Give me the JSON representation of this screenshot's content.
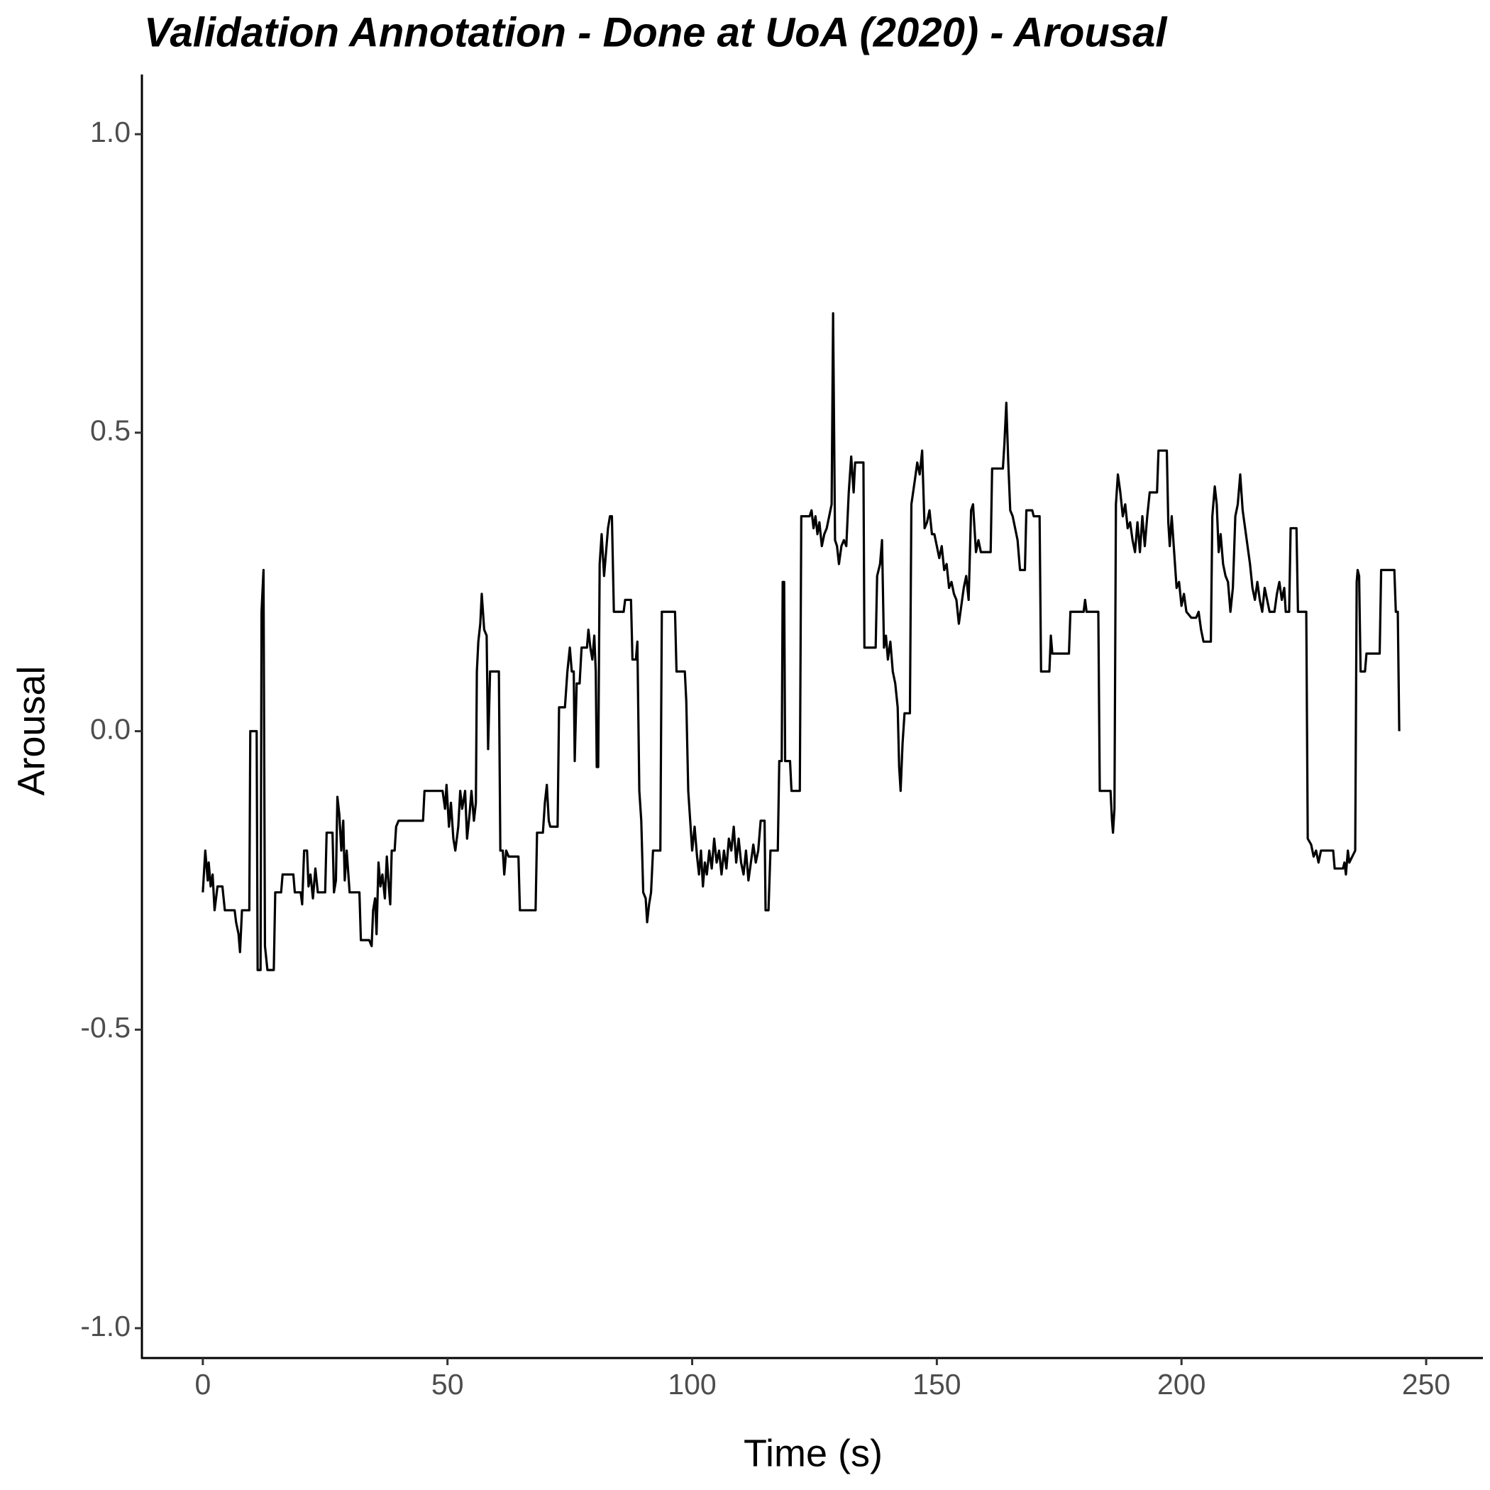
{
  "chart_data": {
    "type": "line",
    "title": "Validation Annotation - Done at UoA (2020) - Arousal",
    "x_label": "Time (s)",
    "y_label": "Arousal",
    "color": "#000000",
    "xlim": [
      -12.45,
      261.45
    ],
    "ylim": [
      -1.05,
      1.1
    ],
    "xticks": [
      0,
      50,
      100,
      150,
      200,
      250
    ],
    "yticks": [
      {
        "value": -1,
        "label": "-1.0"
      },
      {
        "value": -0.5,
        "label": "-0.5"
      },
      {
        "value": 0,
        "label": "0.0"
      },
      {
        "value": 0.5,
        "label": "0.5"
      },
      {
        "value": 1,
        "label": "1.0"
      }
    ],
    "x": [
      0,
      0.5,
      1,
      1.2,
      1.6,
      2,
      2.4,
      3,
      4,
      4.5,
      6,
      6.5,
      6.8,
      7.3,
      7.6,
      8,
      9,
      9.5,
      9.7,
      11,
      11.2,
      11.8,
      12,
      12.4,
      12.7,
      13.2,
      14.5,
      14.8,
      16,
      16.3,
      18.5,
      18.8,
      20,
      20.3,
      20.7,
      21.3,
      21.6,
      22,
      22.5,
      23,
      23.5,
      25,
      25.3,
      26.5,
      26.8,
      27.2,
      27.5,
      27.9,
      28.3,
      28.7,
      29,
      29.4,
      30,
      32,
      32.3,
      34,
      34.5,
      34.8,
      35.2,
      35.5,
      35.9,
      36.3,
      36.7,
      37.2,
      37.6,
      38,
      38.3,
      38.6,
      39.2,
      39.5,
      40,
      45,
      45.3,
      49,
      49.5,
      49.8,
      50.3,
      50.7,
      51.2,
      51.6,
      52.2,
      52.6,
      53,
      53.6,
      54,
      54.5,
      54.9,
      55.4,
      55.8,
      56,
      56.3,
      56.7,
      57,
      57.5,
      58,
      58.3,
      58.7,
      60.5,
      60.8,
      61.3,
      61.6,
      62,
      62.5,
      64.5,
      64.8,
      68,
      68.3,
      69.5,
      69.9,
      70.3,
      70.7,
      71,
      72.5,
      72.8,
      74,
      74.5,
      75,
      75.4,
      75.8,
      76,
      76.4,
      77,
      77.4,
      78.5,
      78.8,
      79.2,
      79.6,
      80,
      80.3,
      80.5,
      80.8,
      81.1,
      81.5,
      82,
      82.4,
      82.8,
      83.2,
      83.6,
      84,
      86,
      86.3,
      87.5,
      87.8,
      88.5,
      88.8,
      89.2,
      89.6,
      90,
      90.5,
      90.8,
      91.2,
      91.6,
      92,
      93.5,
      93.8,
      96.5,
      96.8,
      98.5,
      98.8,
      99.2,
      99.6,
      100,
      100.5,
      101,
      101.4,
      101.8,
      102.2,
      102.6,
      103,
      103.5,
      104,
      104.5,
      105,
      105.5,
      106,
      106.5,
      107,
      107.5,
      108,
      108.5,
      109,
      109.5,
      110,
      110.5,
      111,
      111.5,
      112,
      112.5,
      113,
      113.5,
      114,
      114.8,
      115,
      115.6,
      116,
      117.5,
      117.8,
      118.3,
      118.5,
      118.8,
      119,
      120,
      120.3,
      122,
      122.3,
      124,
      124.4,
      124.8,
      125.2,
      125.6,
      126,
      126.5,
      127,
      127.5,
      128,
      128.5,
      128.8,
      129.2,
      129.6,
      130,
      130.5,
      131,
      131.5,
      132,
      132.5,
      133,
      133.3,
      135,
      135.2,
      137.5,
      137.8,
      138.4,
      138.8,
      139.2,
      139.6,
      140,
      140.5,
      141,
      141.5,
      142,
      142.3,
      142.6,
      143,
      143.4,
      144.5,
      144.8,
      145.5,
      146,
      146.5,
      147,
      147.5,
      148,
      148.5,
      149,
      149.5,
      150,
      150.5,
      151,
      151.5,
      152,
      152.5,
      153,
      153.5,
      154,
      154.5,
      155,
      155.5,
      156,
      156.5,
      157,
      157.4,
      158,
      158.5,
      159,
      161,
      161.3,
      163.5,
      163.8,
      164.2,
      164.6,
      165,
      165.5,
      166,
      166.5,
      167,
      168,
      168.3,
      169.5,
      169.8,
      171,
      171.3,
      173,
      173.3,
      173.6,
      177,
      177.3,
      180,
      180.3,
      180.6,
      183,
      183.3,
      185.5,
      185.8,
      186,
      186.3,
      186.6,
      187,
      187.5,
      188,
      188.5,
      189,
      189.5,
      190,
      190.5,
      191,
      191.5,
      192,
      192.5,
      193,
      193.5,
      195,
      195.3,
      197,
      197.3,
      197.6,
      198,
      198.5,
      199,
      199.5,
      200,
      200.5,
      201,
      202,
      203,
      203.5,
      204,
      204.5,
      206,
      206.3,
      206.8,
      207.2,
      207.6,
      208,
      208.5,
      209,
      209.5,
      210,
      210.5,
      211,
      211.5,
      212,
      212.5,
      213,
      213.5,
      214,
      214.5,
      215,
      215.5,
      216,
      216.5,
      217,
      218,
      219,
      219.5,
      220,
      220.5,
      221,
      221.3,
      222,
      222.3,
      223.5,
      223.8,
      225.5,
      225.8,
      226.5,
      227,
      227.5,
      228,
      228.5,
      231,
      231.3,
      233,
      233.3,
      233.6,
      234,
      234.3,
      235.5,
      235.8,
      236,
      236.3,
      236.6,
      237.5,
      237.8,
      240.5,
      240.8,
      243.5,
      243.8,
      244.2,
      244.5
    ],
    "values": [
      -0.27,
      -0.2,
      -0.25,
      -0.22,
      -0.26,
      -0.24,
      -0.3,
      -0.26,
      -0.26,
      -0.3,
      -0.3,
      -0.3,
      -0.32,
      -0.34,
      -0.37,
      -0.3,
      -0.3,
      -0.3,
      0,
      0,
      -0.4,
      -0.4,
      0.2,
      0.27,
      -0.36,
      -0.4,
      -0.4,
      -0.27,
      -0.27,
      -0.24,
      -0.24,
      -0.27,
      -0.27,
      -0.29,
      -0.2,
      -0.2,
      -0.26,
      -0.24,
      -0.28,
      -0.23,
      -0.27,
      -0.27,
      -0.17,
      -0.17,
      -0.27,
      -0.25,
      -0.11,
      -0.14,
      -0.2,
      -0.15,
      -0.25,
      -0.2,
      -0.27,
      -0.27,
      -0.35,
      -0.35,
      -0.36,
      -0.3,
      -0.28,
      -0.34,
      -0.22,
      -0.26,
      -0.24,
      -0.28,
      -0.21,
      -0.26,
      -0.29,
      -0.2,
      -0.2,
      -0.16,
      -0.15,
      -0.15,
      -0.1,
      -0.1,
      -0.13,
      -0.09,
      -0.16,
      -0.12,
      -0.18,
      -0.2,
      -0.16,
      -0.1,
      -0.13,
      -0.1,
      -0.18,
      -0.14,
      -0.1,
      -0.15,
      -0.12,
      0.1,
      0.15,
      0.18,
      0.23,
      0.17,
      0.16,
      -0.03,
      0.1,
      0.1,
      -0.2,
      -0.2,
      -0.24,
      -0.2,
      -0.21,
      -0.21,
      -0.3,
      -0.3,
      -0.17,
      -0.17,
      -0.12,
      -0.09,
      -0.15,
      -0.16,
      -0.16,
      0.04,
      0.04,
      0.1,
      0.14,
      0.1,
      0.1,
      -0.05,
      0.08,
      0.08,
      0.14,
      0.14,
      0.17,
      0.14,
      0.12,
      0.16,
      0.1,
      -0.06,
      -0.06,
      0.28,
      0.33,
      0.26,
      0.3,
      0.34,
      0.36,
      0.36,
      0.2,
      0.2,
      0.22,
      0.22,
      0.12,
      0.12,
      0.15,
      -0.1,
      -0.15,
      -0.27,
      -0.28,
      -0.32,
      -0.29,
      -0.27,
      -0.2,
      -0.2,
      0.2,
      0.2,
      0.1,
      0.1,
      0.05,
      -0.1,
      -0.15,
      -0.2,
      -0.16,
      -0.21,
      -0.24,
      -0.2,
      -0.26,
      -0.22,
      -0.24,
      -0.2,
      -0.23,
      -0.18,
      -0.22,
      -0.2,
      -0.24,
      -0.2,
      -0.23,
      -0.18,
      -0.2,
      -0.16,
      -0.22,
      -0.18,
      -0.22,
      -0.24,
      -0.2,
      -0.25,
      -0.22,
      -0.19,
      -0.22,
      -0.2,
      -0.15,
      -0.15,
      -0.3,
      -0.3,
      -0.2,
      -0.2,
      -0.05,
      -0.05,
      0.25,
      0.25,
      -0.05,
      -0.05,
      -0.1,
      -0.1,
      0.36,
      0.36,
      0.37,
      0.34,
      0.36,
      0.33,
      0.35,
      0.31,
      0.33,
      0.34,
      0.36,
      0.38,
      0.7,
      0.32,
      0.31,
      0.28,
      0.31,
      0.32,
      0.31,
      0.4,
      0.46,
      0.4,
      0.45,
      0.45,
      0.14,
      0.14,
      0.26,
      0.28,
      0.32,
      0.14,
      0.16,
      0.12,
      0.15,
      0.1,
      0.08,
      0.04,
      -0.06,
      -0.1,
      -0.02,
      0.03,
      0.03,
      0.38,
      0.42,
      0.45,
      0.43,
      0.47,
      0.34,
      0.35,
      0.37,
      0.33,
      0.33,
      0.31,
      0.29,
      0.31,
      0.27,
      0.28,
      0.24,
      0.25,
      0.23,
      0.22,
      0.18,
      0.21,
      0.24,
      0.26,
      0.22,
      0.37,
      0.38,
      0.3,
      0.32,
      0.3,
      0.3,
      0.44,
      0.44,
      0.48,
      0.55,
      0.45,
      0.37,
      0.36,
      0.34,
      0.32,
      0.27,
      0.27,
      0.37,
      0.37,
      0.36,
      0.36,
      0.1,
      0.1,
      0.16,
      0.13,
      0.13,
      0.2,
      0.2,
      0.22,
      0.2,
      0.2,
      -0.1,
      -0.1,
      -0.15,
      -0.17,
      -0.13,
      0.38,
      0.43,
      0.4,
      0.36,
      0.38,
      0.34,
      0.35,
      0.32,
      0.3,
      0.35,
      0.3,
      0.36,
      0.31,
      0.36,
      0.4,
      0.4,
      0.47,
      0.47,
      0.35,
      0.31,
      0.36,
      0.3,
      0.24,
      0.25,
      0.21,
      0.23,
      0.2,
      0.19,
      0.19,
      0.2,
      0.17,
      0.15,
      0.15,
      0.36,
      0.41,
      0.38,
      0.3,
      0.33,
      0.28,
      0.26,
      0.25,
      0.2,
      0.24,
      0.36,
      0.38,
      0.43,
      0.37,
      0.34,
      0.31,
      0.28,
      0.24,
      0.22,
      0.25,
      0.22,
      0.2,
      0.24,
      0.2,
      0.2,
      0.23,
      0.25,
      0.22,
      0.24,
      0.2,
      0.2,
      0.34,
      0.34,
      0.2,
      0.2,
      -0.18,
      -0.19,
      -0.21,
      -0.2,
      -0.22,
      -0.2,
      -0.2,
      -0.23,
      -0.23,
      -0.22,
      -0.24,
      -0.2,
      -0.22,
      -0.2,
      0.25,
      0.27,
      0.26,
      0.1,
      0.1,
      0.13,
      0.13,
      0.27,
      0.27,
      0.2,
      0.2,
      0
    ]
  }
}
